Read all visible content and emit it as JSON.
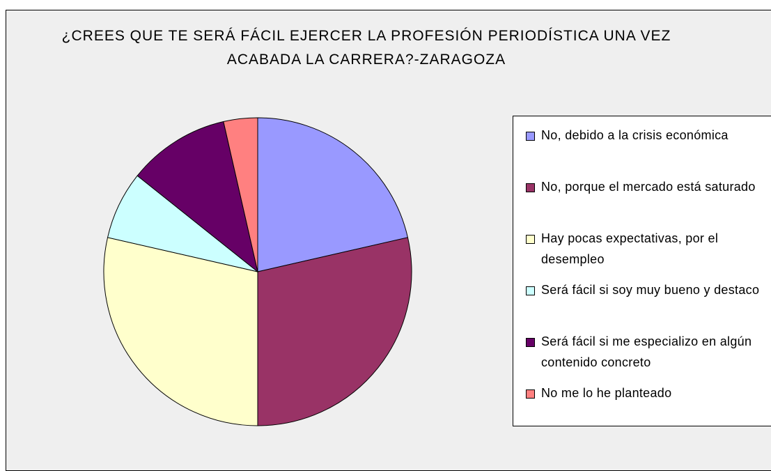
{
  "chart_data": {
    "type": "pie",
    "title": "¿CREES QUE TE SERÁ FÁCIL EJERCER LA PROFESIÓN PERIODÍSTICA UNA VEZ ACABADA LA CARRERA?-ZARAGOZA",
    "categories": [
      "No, debido a la crisis económica",
      "No, porque el mercado está saturado",
      "Hay pocas expectativas, por el desempleo",
      "Será fácil si soy muy bueno y destaco",
      "Será fácil si me especializo en algún contenido concreto",
      "No me lo he planteado"
    ],
    "values": [
      6,
      8,
      8,
      2,
      3,
      1
    ],
    "colors": [
      "#9999ff",
      "#993366",
      "#ffffcc",
      "#ccffff",
      "#660066",
      "#ff8080"
    ],
    "legend": "right"
  }
}
